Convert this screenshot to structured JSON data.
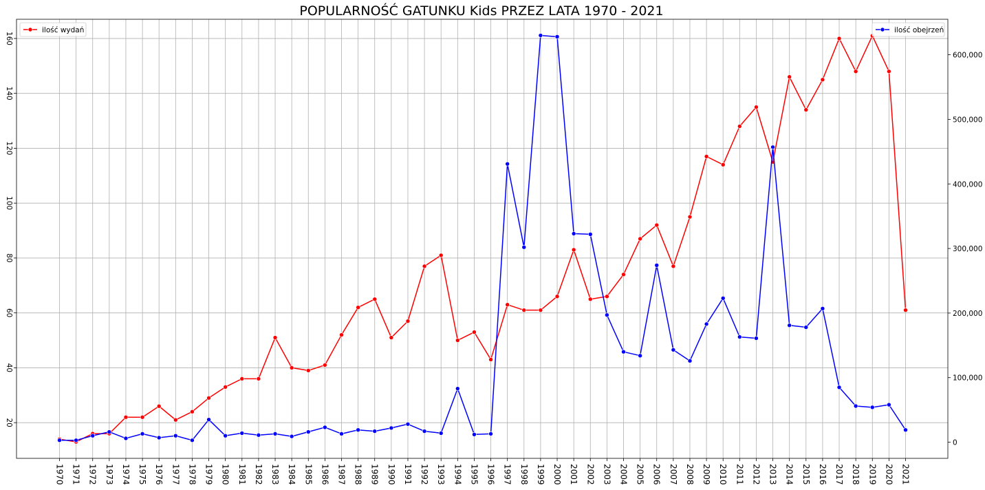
{
  "chart_data": {
    "type": "line",
    "title": "POPULARNOŚĆ GATUNKU Kids PRZEZ LATA 1970 - 2021",
    "xlabel": "",
    "grid": true,
    "x": [
      "1970",
      "1971",
      "1972",
      "1973",
      "1974",
      "1975",
      "1976",
      "1977",
      "1978",
      "1979",
      "1980",
      "1981",
      "1982",
      "1983",
      "1984",
      "1985",
      "1986",
      "1987",
      "1988",
      "1989",
      "1990",
      "1991",
      "1992",
      "1993",
      "1994",
      "1995",
      "1996",
      "1997",
      "1998",
      "1999",
      "2000",
      "2001",
      "2002",
      "2003",
      "2004",
      "2005",
      "2006",
      "2007",
      "2008",
      "2009",
      "2010",
      "2011",
      "2012",
      "2013",
      "2014",
      "2015",
      "2016",
      "2017",
      "2018",
      "2019",
      "2020",
      "2021"
    ],
    "left_axis": {
      "ylim": [
        7,
        167
      ],
      "ticks": [
        "20",
        "40",
        "60",
        "80",
        "100",
        "120",
        "140",
        "160"
      ],
      "tick_values": [
        20,
        40,
        60,
        80,
        100,
        120,
        140,
        160
      ]
    },
    "right_axis": {
      "ylim": [
        -25000,
        655000
      ],
      "ticks": [
        "0",
        "100,000",
        "200,000",
        "300,000",
        "400,000",
        "500,000",
        "600,000"
      ],
      "tick_values": [
        0,
        100000,
        200000,
        300000,
        400000,
        500000,
        600000
      ]
    },
    "series": [
      {
        "name": "ilość wydań",
        "axis": "left",
        "color": "#ff0000",
        "legend_position": "upper-left",
        "values": [
          14,
          13,
          16,
          16,
          22,
          22,
          26,
          21,
          24,
          29,
          33,
          36,
          36,
          51,
          40,
          39,
          41,
          52,
          62,
          65,
          51,
          57,
          77,
          81,
          50,
          53,
          43,
          63,
          61,
          61,
          66,
          83,
          65,
          66,
          74,
          87,
          92,
          77,
          95,
          117,
          114,
          128,
          135,
          115,
          146,
          134,
          145,
          160,
          148,
          161,
          148,
          61
        ]
      },
      {
        "name": "ilość obejrzeń",
        "axis": "right",
        "color": "#0000ff",
        "legend_position": "upper-right",
        "values": [
          3000,
          3000,
          10000,
          16000,
          6000,
          13000,
          7000,
          10000,
          3000,
          35000,
          10000,
          14000,
          11000,
          13000,
          9000,
          16000,
          23000,
          13000,
          19000,
          17000,
          22000,
          28000,
          17000,
          14000,
          83000,
          12000,
          13000,
          431000,
          302000,
          630000,
          628000,
          323000,
          322000,
          197000,
          140000,
          134000,
          274000,
          143000,
          126000,
          183000,
          223000,
          163000,
          161000,
          457000,
          181000,
          178000,
          207000,
          85000,
          56000,
          54000,
          58000,
          19000
        ]
      }
    ]
  }
}
